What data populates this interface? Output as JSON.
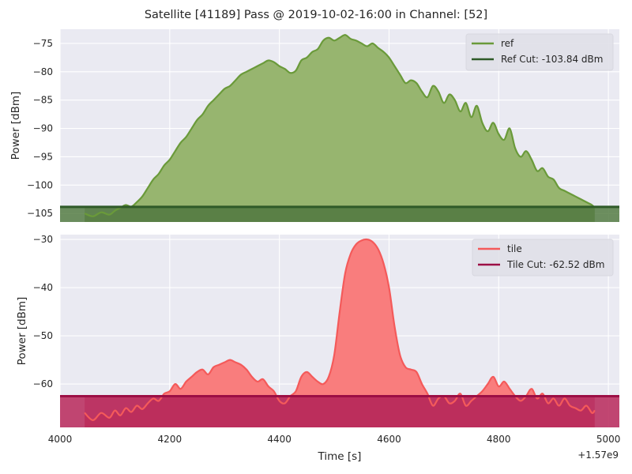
{
  "figure": {
    "title": "Satellite [41189] Pass @ 2019-10-02-16:00 in Channel: [52]",
    "xlabel": "Time [s]",
    "x_offset_label": "+1.57e9"
  },
  "colors": {
    "plot_bg": "#EAEAF2",
    "grid": "#ffffff",
    "ref_line": "#6A9A3A",
    "ref_fill": "#97B56F",
    "ref_cut": "#2F5A28",
    "ref_cut_fill": "#557C44",
    "tile_line": "#F45A5A",
    "tile_fill": "#F97D7D",
    "tile_cut": "#9C0F45",
    "tile_cut_fill": "#B8285A"
  },
  "chart_data": [
    {
      "type": "area",
      "ylabel": "Power [dBm]",
      "xlim": [
        4000,
        5020
      ],
      "ylim": [
        -106.5,
        -72.5
      ],
      "xticks": [
        4000,
        4200,
        4400,
        4600,
        4800,
        5000
      ],
      "yticks": [
        -105,
        -100,
        -95,
        -90,
        -85,
        -80,
        -75
      ],
      "ytick_labels": [
        "−105",
        "−100",
        "−95",
        "−90",
        "−85",
        "−80",
        "−75"
      ],
      "grid": true,
      "legend_position": "top-right",
      "series": [
        {
          "name": "ref",
          "x": [
            4045,
            4060,
            4075,
            4090,
            4100,
            4110,
            4120,
            4130,
            4140,
            4150,
            4160,
            4170,
            4180,
            4190,
            4200,
            4210,
            4220,
            4230,
            4240,
            4250,
            4260,
            4270,
            4280,
            4290,
            4300,
            4310,
            4320,
            4330,
            4340,
            4350,
            4360,
            4370,
            4380,
            4390,
            4400,
            4410,
            4420,
            4430,
            4440,
            4450,
            4460,
            4470,
            4480,
            4490,
            4500,
            4510,
            4520,
            4530,
            4540,
            4550,
            4560,
            4570,
            4580,
            4590,
            4600,
            4610,
            4620,
            4630,
            4640,
            4650,
            4660,
            4670,
            4680,
            4690,
            4700,
            4710,
            4720,
            4730,
            4740,
            4750,
            4760,
            4770,
            4780,
            4790,
            4800,
            4810,
            4820,
            4830,
            4840,
            4850,
            4860,
            4870,
            4880,
            4890,
            4900,
            4910,
            4920,
            4930,
            4940,
            4950,
            4960,
            4970,
            4975
          ],
          "values": [
            -105,
            -105.5,
            -104.8,
            -105.2,
            -104.5,
            -104,
            -103.5,
            -103.8,
            -103,
            -102,
            -100.5,
            -99,
            -98,
            -96.5,
            -95.5,
            -94,
            -92.5,
            -91.5,
            -90,
            -88.5,
            -87.5,
            -86,
            -85,
            -84,
            -83,
            -82.5,
            -81.5,
            -80.5,
            -80,
            -79.5,
            -79,
            -78.5,
            -78,
            -78.3,
            -79,
            -79.5,
            -80.2,
            -79.8,
            -78,
            -77.5,
            -76.5,
            -76,
            -74.5,
            -74,
            -74.5,
            -74,
            -73.5,
            -74.2,
            -74.5,
            -75,
            -75.5,
            -75,
            -75.8,
            -76.5,
            -77.5,
            -79,
            -80.5,
            -82,
            -81.5,
            -82,
            -83.5,
            -84.5,
            -82.5,
            -83.5,
            -85.5,
            -84,
            -85,
            -87,
            -85.5,
            -88,
            -86,
            -89,
            -90.5,
            -89,
            -91,
            -92,
            -90,
            -93.5,
            -95,
            -94,
            -95.5,
            -97.5,
            -97,
            -98.5,
            -99,
            -100.5,
            -101,
            -101.5,
            -102,
            -102.5,
            -103,
            -103.5,
            -104
          ]
        },
        {
          "name": "Ref Cut: -103.84 dBm",
          "type": "hline",
          "value": -103.84
        }
      ]
    },
    {
      "type": "area",
      "ylabel": "Power [dBm]",
      "xlim": [
        4000,
        5020
      ],
      "ylim": [
        -69,
        -29
      ],
      "xticks": [
        4000,
        4200,
        4400,
        4600,
        4800,
        5000
      ],
      "xtick_labels": [
        "4000",
        "4200",
        "4400",
        "4600",
        "4800",
        "5000"
      ],
      "yticks": [
        -60,
        -50,
        -40,
        -30
      ],
      "ytick_labels": [
        "−60",
        "−50",
        "−40",
        "−30"
      ],
      "grid": true,
      "legend_position": "top-right",
      "series": [
        {
          "name": "tile",
          "x": [
            4045,
            4060,
            4075,
            4090,
            4100,
            4110,
            4120,
            4130,
            4140,
            4150,
            4160,
            4170,
            4180,
            4190,
            4200,
            4210,
            4220,
            4230,
            4240,
            4250,
            4260,
            4270,
            4280,
            4290,
            4300,
            4310,
            4320,
            4330,
            4340,
            4350,
            4360,
            4370,
            4380,
            4390,
            4400,
            4410,
            4420,
            4430,
            4440,
            4450,
            4460,
            4470,
            4480,
            4490,
            4500,
            4510,
            4520,
            4530,
            4540,
            4550,
            4560,
            4570,
            4580,
            4590,
            4600,
            4610,
            4620,
            4630,
            4640,
            4650,
            4660,
            4670,
            4680,
            4690,
            4700,
            4710,
            4720,
            4730,
            4740,
            4750,
            4760,
            4770,
            4780,
            4790,
            4800,
            4810,
            4820,
            4830,
            4840,
            4850,
            4860,
            4870,
            4880,
            4890,
            4900,
            4910,
            4920,
            4930,
            4940,
            4950,
            4960,
            4970,
            4975
          ],
          "values": [
            -66,
            -67.5,
            -66,
            -67,
            -65.5,
            -66.5,
            -65,
            -65.8,
            -64.5,
            -65.2,
            -64,
            -63,
            -63.5,
            -62,
            -61.5,
            -60,
            -61,
            -59.5,
            -58.5,
            -57.5,
            -57,
            -58,
            -56.5,
            -56,
            -55.5,
            -55,
            -55.5,
            -56,
            -57,
            -58.5,
            -59.5,
            -59,
            -60.5,
            -61.5,
            -63.5,
            -64,
            -62.5,
            -61.5,
            -58.5,
            -57.5,
            -58.5,
            -59.5,
            -60,
            -58.5,
            -54,
            -45,
            -37,
            -33,
            -31,
            -30.2,
            -30,
            -30.5,
            -32,
            -35,
            -40,
            -48,
            -54,
            -56.5,
            -57,
            -57.5,
            -60,
            -62,
            -64.5,
            -63,
            -62.5,
            -64,
            -63.5,
            -62,
            -64.5,
            -63.5,
            -62.5,
            -61.5,
            -60,
            -58.5,
            -60.5,
            -59.5,
            -61,
            -62.5,
            -63.5,
            -62.5,
            -61,
            -63,
            -62,
            -64,
            -63,
            -64.5,
            -63,
            -64.5,
            -65,
            -65.5,
            -64.5,
            -66,
            -65.5
          ]
        },
        {
          "name": "Tile Cut: -62.52 dBm",
          "type": "hline",
          "value": -62.52
        }
      ]
    }
  ]
}
